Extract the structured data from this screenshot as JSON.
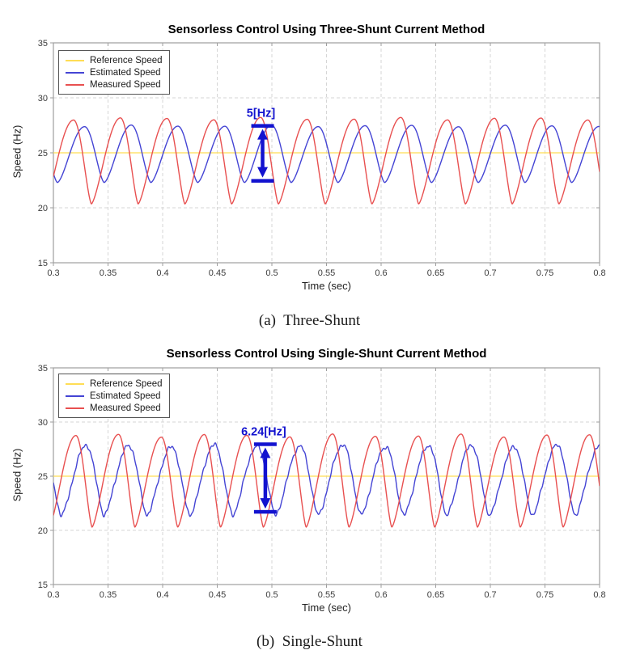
{
  "colors": {
    "reference": "#ffdd55",
    "estimated": "#4444d4",
    "measured": "#e85050",
    "annotation": "#1212cf",
    "grid": "#d6d6d6",
    "axis": "#9e9e9e",
    "tick_text": "#3c3c3c"
  },
  "chart_data": [
    {
      "type": "line",
      "title": "Sensorless Control Using Three-Shunt Current Method",
      "xlabel": "Time (sec)",
      "ylabel": "Speed (Hz)",
      "caption": "(a)  Three-Shunt",
      "xlim": [
        0.3,
        0.8
      ],
      "ylim": [
        15,
        35
      ],
      "xtick_values": [
        0.3,
        0.35,
        0.4,
        0.45,
        0.5,
        0.55,
        0.6,
        0.65,
        0.7,
        0.75,
        0.8
      ],
      "xtick_labels": [
        "0.3",
        "0.35",
        "0.4",
        "0.45",
        "0.5",
        "0.55",
        "0.6",
        "0.65",
        "0.7",
        "0.75",
        "0.8"
      ],
      "ytick_values": [
        15,
        20,
        25,
        30,
        35
      ],
      "ytick_labels": [
        "15",
        "20",
        "25",
        "30",
        "35"
      ],
      "grid": true,
      "legend_position": "top-left",
      "series": [
        {
          "name": "Reference Speed",
          "color_key": "reference",
          "width": 1.2,
          "waveform": {
            "kind": "constant",
            "value": 25
          }
        },
        {
          "name": "Estimated Speed",
          "color_key": "estimated",
          "width": 1.4,
          "waveform": {
            "kind": "ripple",
            "peak": 27.45,
            "trough": 22.3,
            "period": 0.0428,
            "peak_time": 0.3285,
            "rise_fraction": 0.58,
            "top_flatness": 0.78,
            "noise": 0,
            "modulation": 0.08
          }
        },
        {
          "name": "Measured Speed",
          "color_key": "measured",
          "width": 1.4,
          "waveform": {
            "kind": "ripple",
            "peak": 28.1,
            "trough": 20.35,
            "period": 0.0428,
            "peak_time": 0.3185,
            "rise_fraction": 0.62,
            "top_flatness": 0.72,
            "noise": 0,
            "modulation": 0.12
          }
        }
      ],
      "annotation": {
        "label": "5[Hz]",
        "x": 0.4915,
        "y_top": 27.45,
        "y_bottom": 22.45
      }
    },
    {
      "type": "line",
      "title": "Sensorless Control Using Single-Shunt Current Method",
      "xlabel": "Time (sec)",
      "ylabel": "Speed (Hz)",
      "caption": "(b)  Single-Shunt",
      "xlim": [
        0.3,
        0.8
      ],
      "ylim": [
        15,
        35
      ],
      "xtick_values": [
        0.3,
        0.35,
        0.4,
        0.45,
        0.5,
        0.55,
        0.6,
        0.65,
        0.7,
        0.75,
        0.8
      ],
      "xtick_labels": [
        "0.3",
        "0.35",
        "0.4",
        "0.45",
        "0.5",
        "0.55",
        "0.6",
        "0.65",
        "0.7",
        "0.75",
        "0.8"
      ],
      "ytick_values": [
        15,
        20,
        25,
        30,
        35
      ],
      "ytick_labels": [
        "15",
        "20",
        "25",
        "30",
        "35"
      ],
      "grid": true,
      "legend_position": "top-left",
      "series": [
        {
          "name": "Reference Speed",
          "color_key": "reference",
          "width": 1.2,
          "waveform": {
            "kind": "constant",
            "value": 25
          }
        },
        {
          "name": "Estimated Speed",
          "color_key": "estimated",
          "width": 1.4,
          "waveform": {
            "kind": "ripple",
            "peak": 27.8,
            "trough": 21.4,
            "period": 0.0392,
            "peak_time": 0.33,
            "rise_fraction": 0.58,
            "top_flatness": 0.8,
            "noise": 0.08,
            "modulation": 0.1
          }
        },
        {
          "name": "Measured Speed",
          "color_key": "measured",
          "width": 1.4,
          "waveform": {
            "kind": "ripple",
            "peak": 28.75,
            "trough": 20.3,
            "period": 0.0392,
            "peak_time": 0.3205,
            "rise_fraction": 0.62,
            "top_flatness": 0.72,
            "noise": 0,
            "modulation": 0.15
          }
        }
      ],
      "annotation": {
        "label": "6.24[Hz]",
        "x": 0.494,
        "y_top": 27.95,
        "y_bottom": 21.71
      }
    }
  ]
}
